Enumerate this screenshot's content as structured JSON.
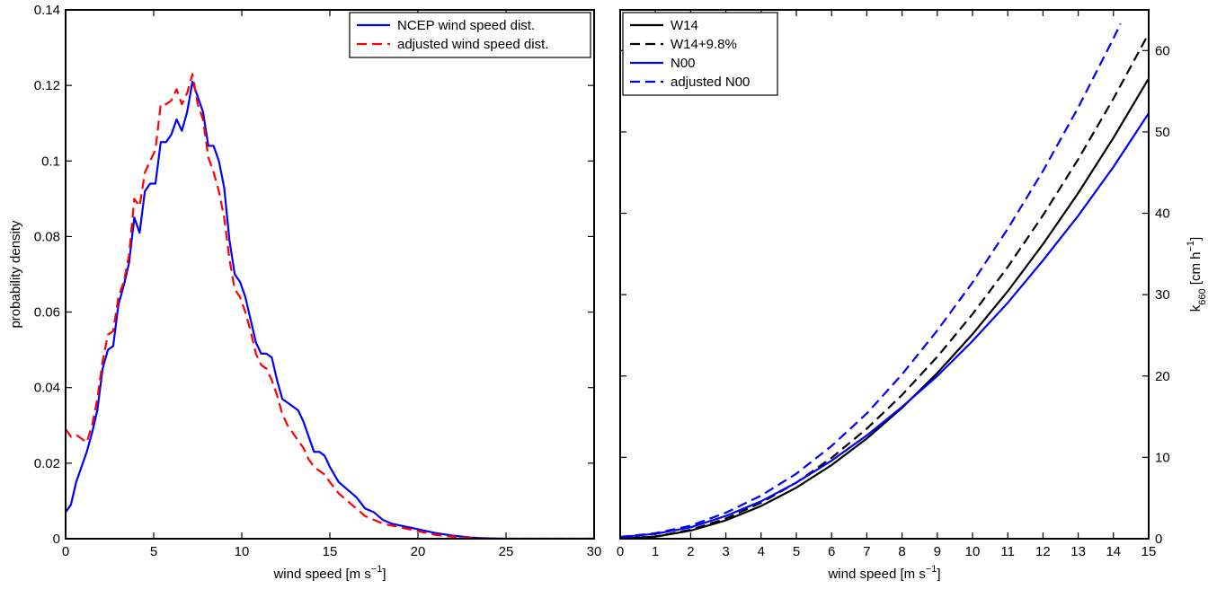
{
  "chart_data": [
    {
      "type": "line",
      "title": "",
      "xlabel": "wind speed [m s",
      "xlabel_sup": "−1",
      "xlabel_end": "]",
      "ylabel": "probability density",
      "xlim": [
        0,
        30
      ],
      "ylim": [
        0,
        0.14
      ],
      "xticks": [
        0,
        5,
        10,
        15,
        20,
        25,
        30
      ],
      "xtick_labels": [
        "0",
        "5",
        "10",
        "15",
        "20",
        "25",
        "30"
      ],
      "yticks": [
        0,
        0.02,
        0.04,
        0.06,
        0.08,
        0.1,
        0.12,
        0.14
      ],
      "ytick_labels": [
        "0",
        "0.02",
        "0.04",
        "0.06",
        "0.08",
        "0.1",
        "0.12",
        "0.14"
      ],
      "grid": false,
      "legend_position": "top-right",
      "series": [
        {
          "name": "NCEP wind speed dist.",
          "color": "#0000ff",
          "dash": "solid",
          "x": [
            0,
            0.3,
            0.6,
            0.9,
            1.2,
            1.5,
            1.8,
            2.1,
            2.4,
            2.7,
            3.0,
            3.3,
            3.6,
            3.9,
            4.2,
            4.5,
            4.8,
            5.1,
            5.4,
            5.7,
            6.0,
            6.3,
            6.6,
            6.9,
            7.2,
            7.5,
            7.8,
            8.1,
            8.4,
            8.7,
            9.0,
            9.3,
            9.6,
            9.9,
            10.2,
            10.5,
            10.8,
            11.1,
            11.4,
            11.7,
            12.0,
            12.3,
            12.6,
            12.9,
            13.2,
            13.5,
            13.8,
            14.1,
            14.4,
            14.7,
            15.0,
            15.5,
            16.0,
            16.5,
            17.0,
            17.5,
            18.0,
            18.5,
            19.0,
            19.5,
            20.0,
            21.0,
            22.0,
            23.0,
            24.0,
            25.0,
            26.0,
            28.0,
            30.0
          ],
          "y": [
            0.007,
            0.009,
            0.015,
            0.019,
            0.023,
            0.028,
            0.034,
            0.045,
            0.05,
            0.051,
            0.062,
            0.067,
            0.073,
            0.085,
            0.081,
            0.092,
            0.094,
            0.094,
            0.105,
            0.105,
            0.107,
            0.111,
            0.108,
            0.113,
            0.121,
            0.117,
            0.113,
            0.104,
            0.104,
            0.1,
            0.093,
            0.079,
            0.07,
            0.068,
            0.064,
            0.058,
            0.052,
            0.049,
            0.049,
            0.048,
            0.042,
            0.037,
            0.036,
            0.035,
            0.034,
            0.031,
            0.027,
            0.023,
            0.023,
            0.022,
            0.019,
            0.015,
            0.013,
            0.011,
            0.008,
            0.007,
            0.005,
            0.004,
            0.0035,
            0.003,
            0.0025,
            0.0015,
            0.0008,
            0.0003,
            0.0001,
            0.0,
            0.0,
            0.0,
            0.0
          ]
        },
        {
          "name": "adjusted wind speed dist.",
          "color": "#ff0000",
          "dash": "dashed",
          "x": [
            0,
            0.3,
            0.6,
            0.9,
            1.2,
            1.5,
            1.8,
            2.1,
            2.4,
            2.7,
            3.0,
            3.3,
            3.6,
            3.9,
            4.2,
            4.5,
            4.8,
            5.1,
            5.4,
            5.7,
            6.0,
            6.3,
            6.6,
            6.9,
            7.2,
            7.5,
            7.8,
            8.1,
            8.4,
            8.7,
            9.0,
            9.3,
            9.6,
            9.9,
            10.2,
            10.5,
            10.8,
            11.1,
            11.4,
            11.7,
            12.0,
            12.3,
            12.6,
            12.9,
            13.2,
            13.5,
            13.8,
            14.1,
            14.4,
            14.7,
            15.0,
            15.5,
            16.0,
            16.5,
            17.0,
            17.5,
            18.0,
            18.5,
            19.0,
            19.5,
            20.0,
            21.0,
            22.0,
            23.0,
            24.0,
            25.0,
            26.0,
            28.0,
            30.0
          ],
          "y": [
            0.029,
            0.027,
            0.0275,
            0.0265,
            0.0255,
            0.03,
            0.037,
            0.047,
            0.054,
            0.055,
            0.064,
            0.068,
            0.075,
            0.09,
            0.088,
            0.097,
            0.1,
            0.103,
            0.115,
            0.115,
            0.116,
            0.119,
            0.115,
            0.118,
            0.123,
            0.115,
            0.111,
            0.101,
            0.097,
            0.092,
            0.085,
            0.074,
            0.066,
            0.064,
            0.06,
            0.055,
            0.049,
            0.046,
            0.045,
            0.042,
            0.038,
            0.033,
            0.03,
            0.028,
            0.026,
            0.024,
            0.021,
            0.019,
            0.018,
            0.017,
            0.015,
            0.012,
            0.01,
            0.008,
            0.006,
            0.005,
            0.004,
            0.0035,
            0.003,
            0.0025,
            0.002,
            0.001,
            0.0005,
            0.0002,
            0.0,
            0.0,
            0.0,
            0.0,
            0.0
          ]
        }
      ]
    },
    {
      "type": "line",
      "title": "",
      "xlabel": "wind speed [m s",
      "xlabel_sup": "−1",
      "xlabel_end": "]",
      "ylabel": "k",
      "ylabel_sub": "660",
      "ylabel_rest": " [cm h",
      "ylabel_sup": "−1",
      "ylabel_end": "]",
      "xlim": [
        0,
        15
      ],
      "ylim": [
        0,
        65
      ],
      "xticks": [
        0,
        1,
        2,
        3,
        4,
        5,
        6,
        7,
        8,
        9,
        10,
        11,
        12,
        13,
        14,
        15
      ],
      "xtick_labels": [
        "0",
        "1",
        "2",
        "3",
        "4",
        "5",
        "6",
        "7",
        "8",
        "9",
        "10",
        "11",
        "12",
        "13",
        "14",
        "15"
      ],
      "yticks": [
        0,
        10,
        20,
        30,
        40,
        50,
        60
      ],
      "ytick_labels": [
        "0",
        "10",
        "20",
        "30",
        "40",
        "50",
        "60"
      ],
      "y_axis_side": "right",
      "grid": false,
      "legend_position": "top-left",
      "series": [
        {
          "name": "W14",
          "color": "#000000",
          "dash": "solid",
          "x": [
            0,
            1,
            2,
            3,
            4,
            5,
            6,
            7,
            8,
            9,
            10,
            11,
            12,
            13,
            14,
            15
          ],
          "y": [
            0,
            0.25,
            1.0,
            2.26,
            4.02,
            6.28,
            9.05,
            12.32,
            16.09,
            20.36,
            25.14,
            30.42,
            36.2,
            42.49,
            49.28,
            56.57
          ]
        },
        {
          "name": "W14+9.8%",
          "color": "#000000",
          "dash": "dashed",
          "x": [
            0,
            1,
            2,
            3,
            4,
            5,
            6,
            7,
            8,
            9,
            10,
            11,
            12,
            13,
            14,
            15
          ],
          "y": [
            0,
            0.28,
            1.1,
            2.48,
            4.42,
            6.9,
            9.94,
            13.53,
            17.67,
            22.36,
            27.6,
            33.4,
            39.75,
            46.65,
            54.1,
            62.1
          ]
        },
        {
          "name": "N00",
          "color": "#0000ff",
          "dash": "solid",
          "x": [
            0,
            1,
            2,
            3,
            4,
            5,
            6,
            7,
            8,
            9,
            10,
            11,
            12,
            13,
            14,
            15
          ],
          "y": [
            0.2,
            0.6,
            1.4,
            2.8,
            4.6,
            6.9,
            9.6,
            12.7,
            16.2,
            20.0,
            24.3,
            29.0,
            34.2,
            39.7,
            45.7,
            52.3
          ]
        },
        {
          "name": "adjusted N00",
          "color": "#0000ff",
          "dash": "dashed",
          "x": [
            0,
            1,
            2,
            3,
            4,
            5,
            6,
            7,
            8,
            9,
            10,
            11,
            12,
            13,
            14,
            14.2
          ],
          "y": [
            0.22,
            0.68,
            1.6,
            3.2,
            5.3,
            8.0,
            11.4,
            15.4,
            20.2,
            25.6,
            31.5,
            38.1,
            45.2,
            53.0,
            61.5,
            63.3
          ]
        }
      ]
    }
  ]
}
